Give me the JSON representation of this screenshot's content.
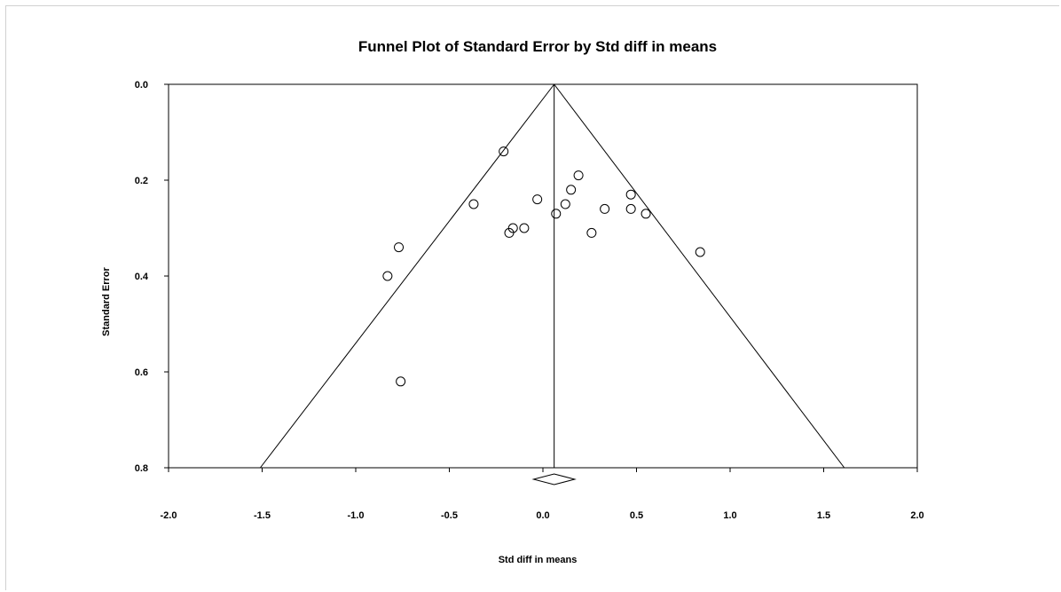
{
  "chart_data": {
    "type": "scatter",
    "title": "Funnel Plot of Standard Error by Std diff in means",
    "xlabel": "Std diff in means",
    "ylabel": "Standard Error",
    "xlim": [
      -2.0,
      2.0
    ],
    "ylim": [
      0.0,
      0.8
    ],
    "y_inverted": true,
    "x_ticks": [
      "-2.0",
      "-1.5",
      "-1.0",
      "-0.5",
      "0.0",
      "0.5",
      "1.0",
      "1.5",
      "2.0"
    ],
    "y_ticks": [
      "0.0",
      "0.2",
      "0.4",
      "0.6",
      "0.8"
    ],
    "grid": false,
    "summary_effect": 0.06,
    "funnel": {
      "apex_x": 0.06,
      "apex_y": 0.0,
      "bottom_left_x": -1.51,
      "bottom_right_x": 1.61,
      "bottom_y": 0.8
    },
    "summary_diamond": {
      "center": 0.06,
      "lower": -0.05,
      "upper": 0.17
    },
    "points": [
      {
        "x": -0.21,
        "y": 0.14
      },
      {
        "x": -0.37,
        "y": 0.25
      },
      {
        "x": -0.77,
        "y": 0.34
      },
      {
        "x": -0.83,
        "y": 0.4
      },
      {
        "x": -0.76,
        "y": 0.62
      },
      {
        "x": -0.16,
        "y": 0.3
      },
      {
        "x": -0.18,
        "y": 0.31
      },
      {
        "x": -0.1,
        "y": 0.3
      },
      {
        "x": -0.03,
        "y": 0.24
      },
      {
        "x": 0.07,
        "y": 0.27
      },
      {
        "x": 0.12,
        "y": 0.25
      },
      {
        "x": 0.15,
        "y": 0.22
      },
      {
        "x": 0.19,
        "y": 0.19
      },
      {
        "x": 0.26,
        "y": 0.31
      },
      {
        "x": 0.33,
        "y": 0.26
      },
      {
        "x": 0.47,
        "y": 0.23
      },
      {
        "x": 0.47,
        "y": 0.26
      },
      {
        "x": 0.55,
        "y": 0.27
      },
      {
        "x": 0.84,
        "y": 0.35
      }
    ]
  }
}
